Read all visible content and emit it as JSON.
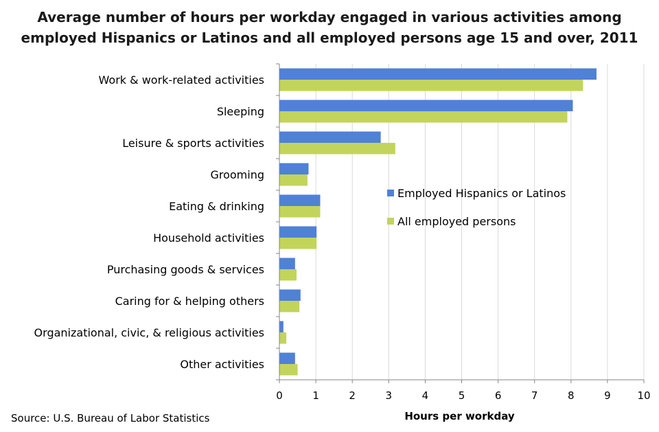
{
  "chart_data": {
    "type": "bar",
    "orientation": "horizontal",
    "title_line1": "Average number of hours per workday engaged in various activities among",
    "title_line2": "employed Hispanics or Latinos and all employed persons age 15 and over, 2011",
    "xlabel": "Hours per workday",
    "ylabel": "",
    "xlim": [
      0,
      10
    ],
    "xticks": [
      "0",
      "1",
      "2",
      "3",
      "4",
      "5",
      "6",
      "7",
      "8",
      "9",
      "10"
    ],
    "grid": "vertical",
    "legend_position": "middle-right",
    "categories": [
      "Work & work-related activities",
      "Sleeping",
      "Leisure & sports activities",
      "Grooming",
      "Eating & drinking",
      "Household activities",
      "Purchasing goods & services",
      "Caring for & helping others",
      "Organizational, civic, & religious activities",
      "Other activities"
    ],
    "series": [
      {
        "name": "Employed Hispanics or Latinos",
        "color": "#4f81d6",
        "values": [
          8.7,
          8.05,
          2.78,
          0.8,
          1.12,
          1.02,
          0.43,
          0.58,
          0.11,
          0.43
        ]
      },
      {
        "name": "All employed persons",
        "color": "#c3d45b",
        "values": [
          8.33,
          7.9,
          3.18,
          0.77,
          1.12,
          1.02,
          0.47,
          0.55,
          0.19,
          0.5
        ]
      }
    ]
  },
  "source": "Source: U.S. Bureau of Labor Statistics"
}
